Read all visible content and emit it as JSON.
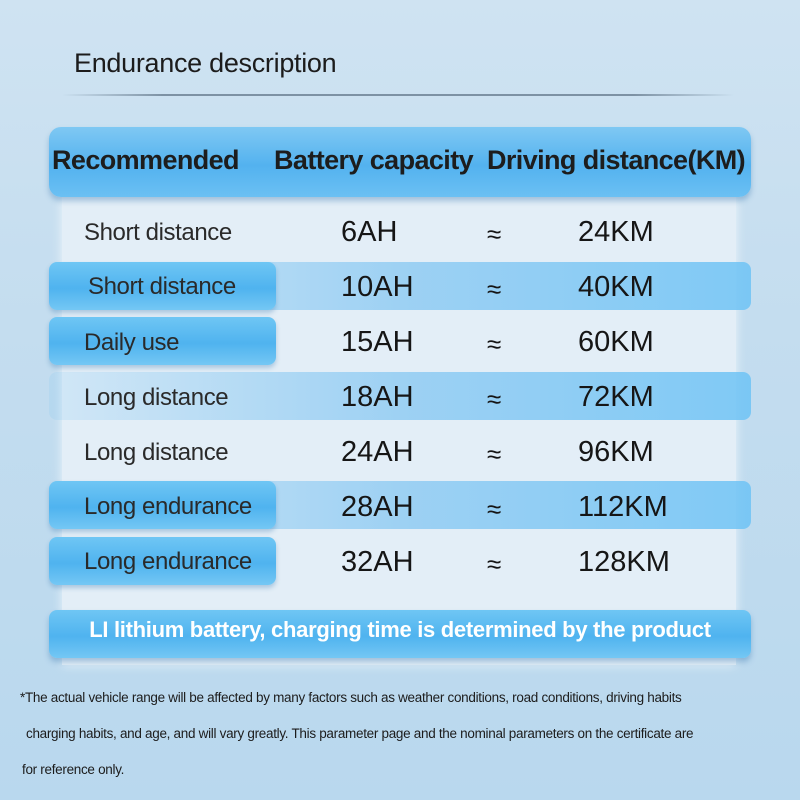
{
  "title": "Endurance description",
  "table": {
    "headers": [
      "Recommended",
      "Battery capacity",
      "Driving distance(KM)"
    ],
    "rows": [
      {
        "use": "Short distance",
        "capacity": "6AH",
        "approx": "≈",
        "distance": "24KM"
      },
      {
        "use": "Short distance",
        "capacity": "10AH",
        "approx": "≈",
        "distance": "40KM"
      },
      {
        "use": "Daily use",
        "capacity": "15AH",
        "approx": "≈",
        "distance": "60KM"
      },
      {
        "use": "Long distance",
        "capacity": "18AH",
        "approx": "≈",
        "distance": "72KM"
      },
      {
        "use": "Long distance",
        "capacity": "24AH",
        "approx": "≈",
        "distance": "96KM"
      },
      {
        "use": "Long endurance",
        "capacity": "28AH",
        "approx": "≈",
        "distance": "112KM"
      },
      {
        "use": "Long endurance",
        "capacity": "32AH",
        "approx": "≈",
        "distance": "128KM"
      }
    ],
    "footer": "LI lithium battery, charging time is determined by the product"
  },
  "note": {
    "lines": [
      "*The actual vehicle range will be affected by many factors such as weather conditions, road conditions, driving habits",
      "charging habits, and age, and will vary greatly. This parameter page and the nominal parameters on the certificate are",
      "for reference only."
    ]
  },
  "colors": {
    "header_blue": "#53b2ef",
    "panel": "#e3eef7",
    "background": "#c4ddef"
  }
}
